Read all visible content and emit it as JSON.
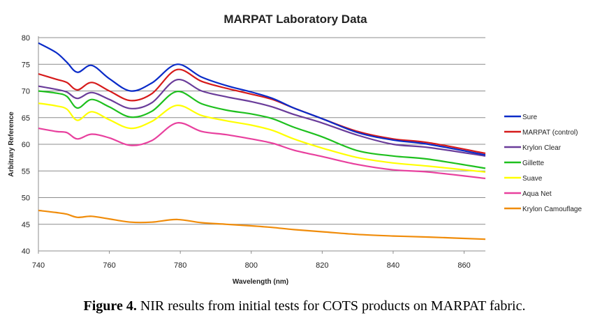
{
  "chart_data": {
    "type": "line",
    "title": "MARPAT Laboratory Data",
    "xlabel": "Wavelength (nm)",
    "ylabel": "Arbitrary Reference",
    "xlim": [
      740,
      866
    ],
    "ylim": [
      40,
      80
    ],
    "xticks": [
      740,
      760,
      780,
      800,
      820,
      840,
      860
    ],
    "yticks": [
      40,
      45,
      50,
      55,
      60,
      65,
      70,
      75,
      80
    ],
    "grid": "horizontal",
    "legend_position": "right",
    "x": [
      740,
      745,
      748,
      751,
      755,
      760,
      766,
      772,
      779,
      786,
      793,
      800,
      806,
      812,
      820,
      830,
      840,
      850,
      866
    ],
    "series": [
      {
        "name": "Sure",
        "color": "#0a2bc8",
        "values": [
          79.0,
          77.2,
          75.4,
          73.5,
          74.8,
          72.3,
          70.0,
          71.5,
          75.0,
          72.6,
          71.0,
          69.8,
          68.6,
          66.8,
          64.8,
          62.2,
          60.8,
          60.0,
          58.0
        ]
      },
      {
        "name": "MARPAT (control)",
        "color": "#d61a1a",
        "values": [
          73.2,
          72.2,
          71.6,
          70.2,
          71.6,
          70.0,
          68.2,
          69.5,
          74.0,
          71.8,
          70.5,
          69.4,
          68.4,
          66.8,
          64.8,
          62.4,
          61.0,
          60.3,
          58.3
        ]
      },
      {
        "name": "Krylon Clear",
        "color": "#6a3c9a",
        "values": [
          70.9,
          70.3,
          69.8,
          68.6,
          69.7,
          68.4,
          66.7,
          67.8,
          72.1,
          70.0,
          68.9,
          68.0,
          67.0,
          65.6,
          64.0,
          61.7,
          60.0,
          59.4,
          57.8
        ]
      },
      {
        "name": "Gillette",
        "color": "#1ec01e",
        "values": [
          70.0,
          69.6,
          69.0,
          66.8,
          68.4,
          67.0,
          65.1,
          66.2,
          69.9,
          67.6,
          66.4,
          65.7,
          64.8,
          63.2,
          61.4,
          58.8,
          57.8,
          57.2,
          55.5
        ]
      },
      {
        "name": "Suave",
        "color": "#ffff00",
        "values": [
          67.7,
          67.2,
          66.6,
          64.5,
          66.1,
          64.6,
          63.0,
          64.3,
          67.3,
          65.4,
          64.4,
          63.6,
          62.6,
          61.0,
          59.3,
          57.5,
          56.5,
          55.9,
          54.8
        ]
      },
      {
        "name": "Aqua Net",
        "color": "#e8409e",
        "values": [
          63.0,
          62.4,
          62.2,
          61.0,
          61.9,
          61.2,
          59.8,
          60.7,
          64.0,
          62.4,
          61.8,
          61.0,
          60.2,
          58.9,
          57.7,
          56.2,
          55.2,
          54.8,
          53.6
        ]
      },
      {
        "name": "Krylon Camouflage",
        "color": "#f08c0a",
        "values": [
          47.6,
          47.2,
          46.9,
          46.3,
          46.5,
          46.0,
          45.4,
          45.4,
          45.9,
          45.3,
          45.0,
          44.7,
          44.4,
          44.0,
          43.6,
          43.1,
          42.8,
          42.6,
          42.2
        ]
      }
    ]
  },
  "caption": {
    "label": "Figure 4.",
    "text": "NIR results from initial tests for COTS products on MARPAT fabric."
  }
}
